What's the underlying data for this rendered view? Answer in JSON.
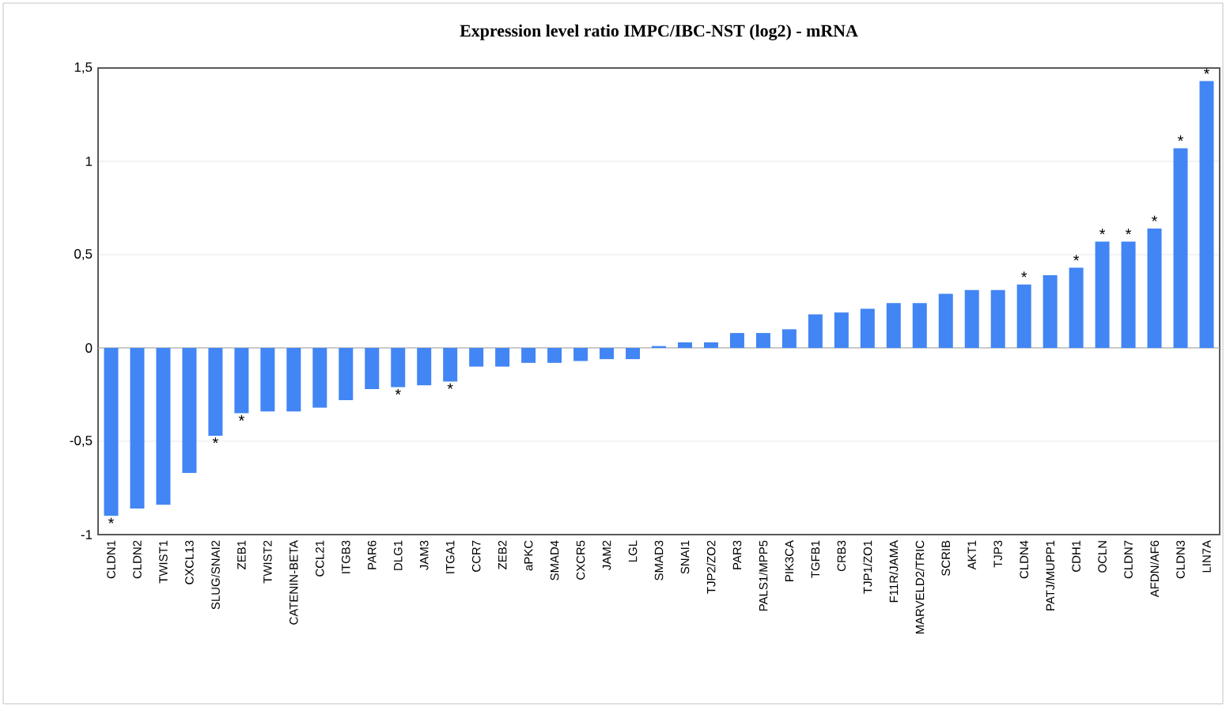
{
  "chart_data": {
    "type": "bar",
    "title": "Expression level ratio IMPC/IBC-NST (log2) - mRNA",
    "categories": [
      "CLDN1",
      "CLDN2",
      "TWIST1",
      "CXCL13",
      "SLUG/SNAI2",
      "ZEB1",
      "TWIST2",
      "CATENIN-BETA",
      "CCL21",
      "ITGB3",
      "PAR6",
      "DLG1",
      "JAM3",
      "ITGA1",
      "CCR7",
      "ZEB2",
      "aPKC",
      "SMAD4",
      "CXCR5",
      "JAM2",
      "LGL",
      "SMAD3",
      "SNAI1",
      "TJP2/ZO2",
      "PAR3",
      "PALS1/MPP5",
      "PIK3CA",
      "TGFB1",
      "CRB3",
      "TJP1/ZO1",
      "F11R/JAMA",
      "MARVELD2/TRIC",
      "SCRIB",
      "AKT1",
      "TJP3",
      "CLDN4",
      "PATJ/MUPP1",
      "CDH1",
      "OCLN",
      "CLDN7",
      "AFDN/AF6",
      "CLDN3",
      "LIN7A"
    ],
    "values": [
      -0.9,
      -0.86,
      -0.84,
      -0.67,
      -0.47,
      -0.35,
      -0.34,
      -0.34,
      -0.32,
      -0.28,
      -0.22,
      -0.21,
      -0.2,
      -0.18,
      -0.1,
      -0.1,
      -0.08,
      -0.08,
      -0.07,
      -0.06,
      -0.06,
      0.01,
      0.03,
      0.03,
      0.08,
      0.08,
      0.1,
      0.18,
      0.19,
      0.21,
      0.24,
      0.24,
      0.29,
      0.31,
      0.31,
      0.34,
      0.39,
      0.43,
      0.57,
      0.57,
      0.64,
      1.07,
      1.43
    ],
    "color": "#4285f4",
    "ylim": [
      -1,
      1.5
    ],
    "yticks": [
      {
        "value": -1,
        "label": "-1"
      },
      {
        "value": -0.5,
        "label": "-0,5"
      },
      {
        "value": 0,
        "label": "0"
      },
      {
        "value": 0.5,
        "label": "0,5"
      },
      {
        "value": 1,
        "label": "1"
      },
      {
        "value": 1.5,
        "label": "1,5"
      }
    ],
    "grid": "y",
    "annotations": [
      {
        "text": "*",
        "x": "CLDN1",
        "y": -0.9
      },
      {
        "text": "*",
        "x": "SLUG/SNAI2",
        "y": -0.47
      },
      {
        "text": "*",
        "x": "ZEB1",
        "y": -0.35
      },
      {
        "text": "*",
        "x": "DLG1",
        "y": -0.21
      },
      {
        "text": "*",
        "x": "ITGA1",
        "y": -0.18
      },
      {
        "text": "*",
        "x": "CLDN4",
        "y": 0.34
      },
      {
        "text": "*",
        "x": "CDH1",
        "y": 0.43
      },
      {
        "text": "*",
        "x": "OCLN",
        "y": 0.57
      },
      {
        "text": "*",
        "x": "CLDN7",
        "y": 0.57
      },
      {
        "text": "*",
        "x": "AFDN/AF6",
        "y": 0.64
      },
      {
        "text": "*",
        "x": "CLDN3",
        "y": 1.07
      },
      {
        "text": "*",
        "x": "LIN7A",
        "y": 1.43
      }
    ]
  }
}
